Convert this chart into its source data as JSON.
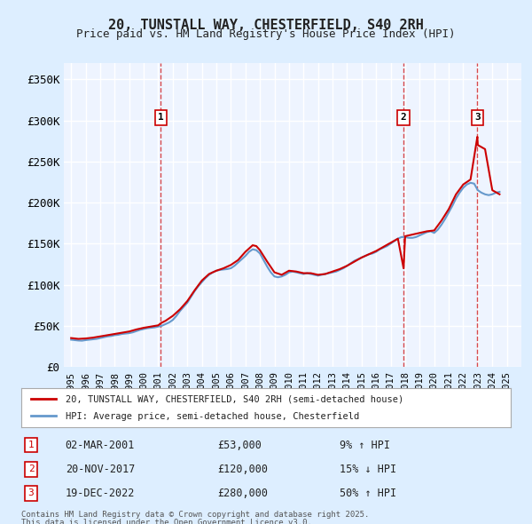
{
  "title1": "20, TUNSTALL WAY, CHESTERFIELD, S40 2RH",
  "title2": "Price paid vs. HM Land Registry's House Price Index (HPI)",
  "legend1": "20, TUNSTALL WAY, CHESTERFIELD, S40 2RH (semi-detached house)",
  "legend2": "HPI: Average price, semi-detached house, Chesterfield",
  "footer1": "Contains HM Land Registry data © Crown copyright and database right 2025.",
  "footer2": "This data is licensed under the Open Government Licence v3.0.",
  "sales": [
    {
      "label": "1",
      "date_str": "02-MAR-2001",
      "year": 2001.17,
      "price": 53000,
      "pct": "9%",
      "dir": "↑"
    },
    {
      "label": "2",
      "date_str": "20-NOV-2017",
      "year": 2017.89,
      "price": 120000,
      "pct": "15%",
      "dir": "↓"
    },
    {
      "label": "3",
      "date_str": "19-DEC-2022",
      "year": 2022.97,
      "price": 280000,
      "pct": "50%",
      "dir": "↑"
    }
  ],
  "ylim": [
    0,
    370000
  ],
  "xlim": [
    1994.5,
    2026
  ],
  "yticks": [
    0,
    50000,
    100000,
    150000,
    200000,
    250000,
    300000,
    350000
  ],
  "ytick_labels": [
    "£0",
    "£50K",
    "£100K",
    "£150K",
    "£200K",
    "£250K",
    "£300K",
    "£350K"
  ],
  "bg_color": "#ddeeff",
  "plot_bg": "#eef4ff",
  "grid_color": "#ffffff",
  "red_line": "#cc0000",
  "blue_line": "#6699cc",
  "hpi_data": {
    "years": [
      1995.0,
      1995.25,
      1995.5,
      1995.75,
      1996.0,
      1996.25,
      1996.5,
      1996.75,
      1997.0,
      1997.25,
      1997.5,
      1997.75,
      1998.0,
      1998.25,
      1998.5,
      1998.75,
      1999.0,
      1999.25,
      1999.5,
      1999.75,
      2000.0,
      2000.25,
      2000.5,
      2000.75,
      2001.0,
      2001.25,
      2001.5,
      2001.75,
      2002.0,
      2002.25,
      2002.5,
      2002.75,
      2003.0,
      2003.25,
      2003.5,
      2003.75,
      2004.0,
      2004.25,
      2004.5,
      2004.75,
      2005.0,
      2005.25,
      2005.5,
      2005.75,
      2006.0,
      2006.25,
      2006.5,
      2006.75,
      2007.0,
      2007.25,
      2007.5,
      2007.75,
      2008.0,
      2008.25,
      2008.5,
      2008.75,
      2009.0,
      2009.25,
      2009.5,
      2009.75,
      2010.0,
      2010.25,
      2010.5,
      2010.75,
      2011.0,
      2011.25,
      2011.5,
      2011.75,
      2012.0,
      2012.25,
      2012.5,
      2012.75,
      2013.0,
      2013.25,
      2013.5,
      2013.75,
      2014.0,
      2014.25,
      2014.5,
      2014.75,
      2015.0,
      2015.25,
      2015.5,
      2015.75,
      2016.0,
      2016.25,
      2016.5,
      2016.75,
      2017.0,
      2017.25,
      2017.5,
      2017.75,
      2018.0,
      2018.25,
      2018.5,
      2018.75,
      2019.0,
      2019.25,
      2019.5,
      2019.75,
      2020.0,
      2020.25,
      2020.5,
      2020.75,
      2021.0,
      2021.25,
      2021.5,
      2021.75,
      2022.0,
      2022.25,
      2022.5,
      2022.75,
      2023.0,
      2023.25,
      2023.5,
      2023.75,
      2024.0,
      2024.25,
      2024.5
    ],
    "prices": [
      33000,
      32500,
      32000,
      31800,
      32500,
      33000,
      33500,
      34000,
      35000,
      36000,
      37000,
      37500,
      38500,
      39000,
      40000,
      40500,
      41000,
      42000,
      43500,
      45000,
      46000,
      47000,
      47500,
      48000,
      49000,
      50000,
      52000,
      54000,
      57000,
      62000,
      68000,
      73000,
      78000,
      85000,
      92000,
      98000,
      103000,
      108000,
      112000,
      115000,
      117000,
      118000,
      118500,
      119000,
      120000,
      123000,
      127000,
      131000,
      135000,
      140000,
      143000,
      142000,
      138000,
      130000,
      122000,
      115000,
      110000,
      109000,
      110000,
      112000,
      115000,
      116000,
      115000,
      114000,
      113000,
      114000,
      113000,
      112000,
      111000,
      112000,
      113000,
      114000,
      115000,
      116000,
      118000,
      120000,
      123000,
      126000,
      129000,
      131000,
      133000,
      135000,
      137000,
      138000,
      140000,
      143000,
      145000,
      147000,
      150000,
      153000,
      156000,
      158000,
      158000,
      157000,
      157000,
      158000,
      160000,
      162000,
      164000,
      165000,
      163000,
      167000,
      173000,
      180000,
      188000,
      196000,
      205000,
      212000,
      218000,
      222000,
      224000,
      223000,
      215000,
      212000,
      210000,
      209000,
      210000,
      212000,
      213000
    ]
  },
  "property_data": {
    "years": [
      1995.0,
      1995.5,
      1996.0,
      1996.5,
      1997.0,
      1997.5,
      1998.0,
      1998.5,
      1999.0,
      1999.5,
      2000.0,
      2000.5,
      2001.0,
      2001.17,
      2001.5,
      2002.0,
      2002.5,
      2003.0,
      2003.5,
      2004.0,
      2004.5,
      2005.0,
      2005.5,
      2006.0,
      2006.5,
      2007.0,
      2007.5,
      2007.75,
      2008.0,
      2008.5,
      2009.0,
      2009.5,
      2010.0,
      2010.5,
      2011.0,
      2011.5,
      2012.0,
      2012.5,
      2013.0,
      2013.5,
      2014.0,
      2014.5,
      2015.0,
      2015.5,
      2016.0,
      2016.5,
      2017.0,
      2017.5,
      2017.89,
      2018.0,
      2018.5,
      2019.0,
      2019.5,
      2020.0,
      2020.5,
      2021.0,
      2021.5,
      2022.0,
      2022.5,
      2022.97,
      2023.0,
      2023.5,
      2024.0,
      2024.5
    ],
    "prices": [
      35000,
      34000,
      34500,
      35500,
      37000,
      38500,
      40000,
      41500,
      43000,
      45500,
      47500,
      49000,
      50500,
      53000,
      56000,
      62000,
      70000,
      80000,
      93000,
      105000,
      113000,
      117000,
      120000,
      124000,
      130000,
      140000,
      148000,
      147000,
      142000,
      128000,
      115000,
      112000,
      117000,
      116000,
      114000,
      114000,
      112000,
      113000,
      116000,
      119000,
      123000,
      128000,
      133000,
      137000,
      141000,
      146000,
      151000,
      156000,
      120000,
      159000,
      161000,
      163000,
      165000,
      166000,
      178000,
      192000,
      210000,
      222000,
      228000,
      280000,
      270000,
      265000,
      215000,
      210000
    ]
  }
}
